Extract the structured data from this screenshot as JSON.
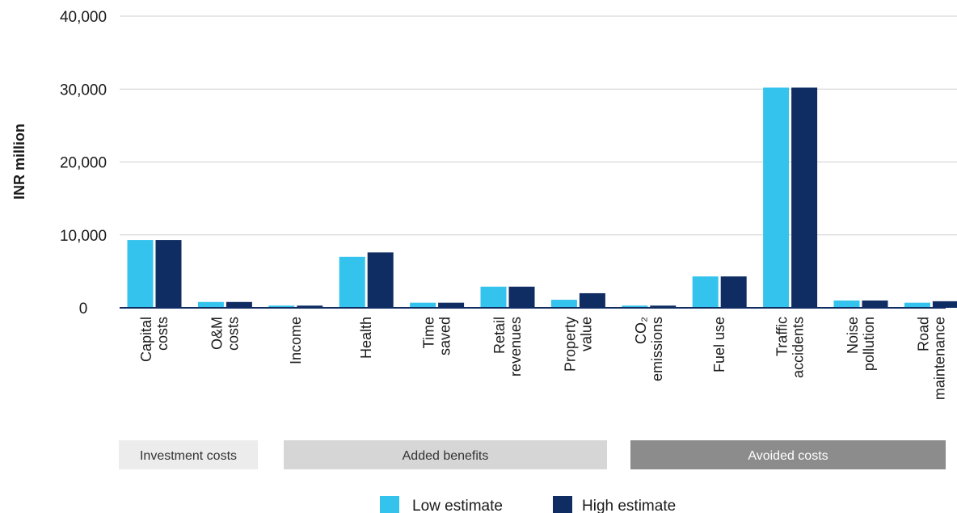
{
  "chart_data": {
    "type": "bar",
    "ylabel": "INR million",
    "xlabel": "",
    "title": "",
    "ylim": [
      0,
      40000
    ],
    "yticks": [
      0,
      10000,
      20000,
      30000,
      40000
    ],
    "ytick_labels": [
      "0",
      "10,000",
      "20,000",
      "30,000",
      "40,000"
    ],
    "grid": "horizontal",
    "categories": [
      [
        "Capital",
        "costs"
      ],
      [
        "O&M",
        "costs"
      ],
      [
        "Income"
      ],
      [
        "Health"
      ],
      [
        "Time",
        "saved"
      ],
      [
        "Retail",
        "revenues"
      ],
      [
        "Property",
        "value"
      ],
      [
        "CO₂",
        "emissions"
      ],
      [
        "Fuel use"
      ],
      [
        "Traffic",
        "accidents"
      ],
      [
        "Noise",
        "pollution"
      ],
      [
        "Road",
        "maintenance"
      ]
    ],
    "series": [
      {
        "name": "Low estimate",
        "color": "#33c3ed",
        "values": [
          9300,
          800,
          300,
          7000,
          700,
          2900,
          1100,
          300,
          4300,
          30200,
          1000,
          700
        ]
      },
      {
        "name": "High estimate",
        "color": "#0f2d62",
        "values": [
          9300,
          800,
          300,
          7600,
          700,
          2900,
          2000,
          300,
          4300,
          30200,
          1000,
          900
        ]
      }
    ],
    "groups": [
      {
        "label": "Investment costs",
        "start": 0,
        "end": 1,
        "bg": "#ececec",
        "fg": "#333333"
      },
      {
        "label": "Added benefits",
        "start": 2,
        "end": 6,
        "bg": "#d6d6d6",
        "fg": "#333333"
      },
      {
        "label": "Avoided costs",
        "start": 7,
        "end": 11,
        "bg": "#8c8c8c",
        "fg": "#ffffff"
      }
    ],
    "legend_position": "bottom-center"
  }
}
